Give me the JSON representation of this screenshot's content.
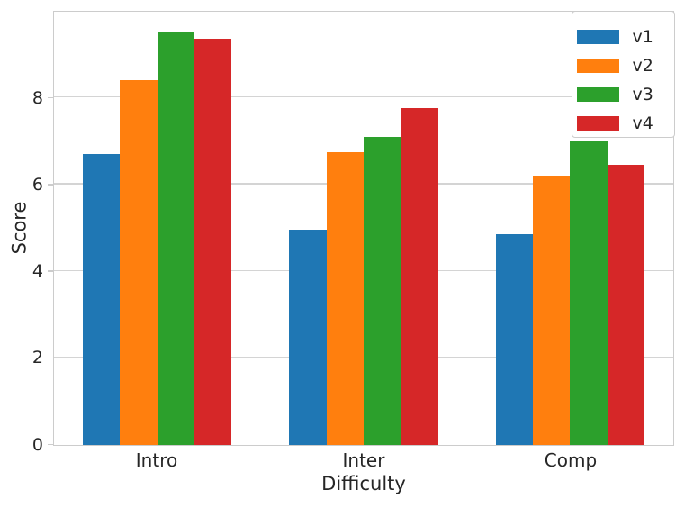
{
  "chart_data": {
    "type": "bar",
    "title": "",
    "categories": [
      "Intro",
      "Inter",
      "Comp"
    ],
    "series": [
      {
        "name": "v1",
        "color": "#1f77b4",
        "values": [
          6.7,
          4.95,
          4.85
        ]
      },
      {
        "name": "v2",
        "color": "#ff7f0e",
        "values": [
          8.4,
          6.75,
          6.2
        ]
      },
      {
        "name": "v3",
        "color": "#2ca02c",
        "values": [
          9.5,
          7.1,
          7.0
        ]
      },
      {
        "name": "v4",
        "color": "#d62728",
        "values": [
          9.35,
          7.75,
          6.45
        ]
      }
    ],
    "xlabel": "Difficulty",
    "ylabel": "Score",
    "ylim": [
      0,
      9.975
    ],
    "yticks": [
      0,
      2,
      4,
      6,
      8
    ],
    "grid": true,
    "legend_position": "upper right"
  },
  "colors": {
    "background": "#ffffff",
    "grid": "#d4d4d4",
    "spine": "#cccccc",
    "text": "#262626"
  }
}
